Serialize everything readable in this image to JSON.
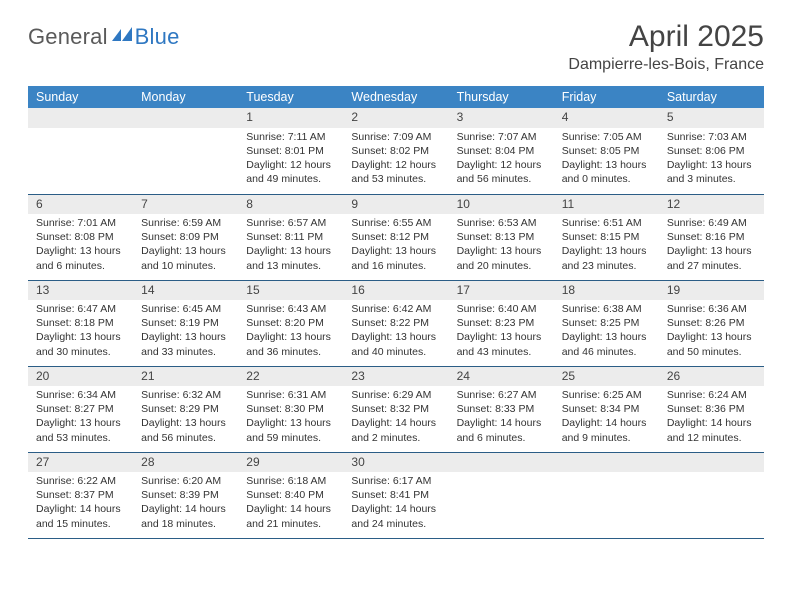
{
  "brand": {
    "part1": "General",
    "part2": "Blue"
  },
  "title": "April 2025",
  "location": "Dampierre-les-Bois, France",
  "colors": {
    "header_bg": "#3b84c4",
    "row_sep": "#2b5d86",
    "band_bg": "#ececec",
    "text": "#333333",
    "brand_gray": "#5a5a5a",
    "brand_blue": "#2f78c2"
  },
  "weekdays": [
    "Sunday",
    "Monday",
    "Tuesday",
    "Wednesday",
    "Thursday",
    "Friday",
    "Saturday"
  ],
  "weeks": [
    [
      null,
      null,
      {
        "n": "1",
        "sr": "7:11 AM",
        "ss": "8:01 PM",
        "dl": "12 hours and 49 minutes."
      },
      {
        "n": "2",
        "sr": "7:09 AM",
        "ss": "8:02 PM",
        "dl": "12 hours and 53 minutes."
      },
      {
        "n": "3",
        "sr": "7:07 AM",
        "ss": "8:04 PM",
        "dl": "12 hours and 56 minutes."
      },
      {
        "n": "4",
        "sr": "7:05 AM",
        "ss": "8:05 PM",
        "dl": "13 hours and 0 minutes."
      },
      {
        "n": "5",
        "sr": "7:03 AM",
        "ss": "8:06 PM",
        "dl": "13 hours and 3 minutes."
      }
    ],
    [
      {
        "n": "6",
        "sr": "7:01 AM",
        "ss": "8:08 PM",
        "dl": "13 hours and 6 minutes."
      },
      {
        "n": "7",
        "sr": "6:59 AM",
        "ss": "8:09 PM",
        "dl": "13 hours and 10 minutes."
      },
      {
        "n": "8",
        "sr": "6:57 AM",
        "ss": "8:11 PM",
        "dl": "13 hours and 13 minutes."
      },
      {
        "n": "9",
        "sr": "6:55 AM",
        "ss": "8:12 PM",
        "dl": "13 hours and 16 minutes."
      },
      {
        "n": "10",
        "sr": "6:53 AM",
        "ss": "8:13 PM",
        "dl": "13 hours and 20 minutes."
      },
      {
        "n": "11",
        "sr": "6:51 AM",
        "ss": "8:15 PM",
        "dl": "13 hours and 23 minutes."
      },
      {
        "n": "12",
        "sr": "6:49 AM",
        "ss": "8:16 PM",
        "dl": "13 hours and 27 minutes."
      }
    ],
    [
      {
        "n": "13",
        "sr": "6:47 AM",
        "ss": "8:18 PM",
        "dl": "13 hours and 30 minutes."
      },
      {
        "n": "14",
        "sr": "6:45 AM",
        "ss": "8:19 PM",
        "dl": "13 hours and 33 minutes."
      },
      {
        "n": "15",
        "sr": "6:43 AM",
        "ss": "8:20 PM",
        "dl": "13 hours and 36 minutes."
      },
      {
        "n": "16",
        "sr": "6:42 AM",
        "ss": "8:22 PM",
        "dl": "13 hours and 40 minutes."
      },
      {
        "n": "17",
        "sr": "6:40 AM",
        "ss": "8:23 PM",
        "dl": "13 hours and 43 minutes."
      },
      {
        "n": "18",
        "sr": "6:38 AM",
        "ss": "8:25 PM",
        "dl": "13 hours and 46 minutes."
      },
      {
        "n": "19",
        "sr": "6:36 AM",
        "ss": "8:26 PM",
        "dl": "13 hours and 50 minutes."
      }
    ],
    [
      {
        "n": "20",
        "sr": "6:34 AM",
        "ss": "8:27 PM",
        "dl": "13 hours and 53 minutes."
      },
      {
        "n": "21",
        "sr": "6:32 AM",
        "ss": "8:29 PM",
        "dl": "13 hours and 56 minutes."
      },
      {
        "n": "22",
        "sr": "6:31 AM",
        "ss": "8:30 PM",
        "dl": "13 hours and 59 minutes."
      },
      {
        "n": "23",
        "sr": "6:29 AM",
        "ss": "8:32 PM",
        "dl": "14 hours and 2 minutes."
      },
      {
        "n": "24",
        "sr": "6:27 AM",
        "ss": "8:33 PM",
        "dl": "14 hours and 6 minutes."
      },
      {
        "n": "25",
        "sr": "6:25 AM",
        "ss": "8:34 PM",
        "dl": "14 hours and 9 minutes."
      },
      {
        "n": "26",
        "sr": "6:24 AM",
        "ss": "8:36 PM",
        "dl": "14 hours and 12 minutes."
      }
    ],
    [
      {
        "n": "27",
        "sr": "6:22 AM",
        "ss": "8:37 PM",
        "dl": "14 hours and 15 minutes."
      },
      {
        "n": "28",
        "sr": "6:20 AM",
        "ss": "8:39 PM",
        "dl": "14 hours and 18 minutes."
      },
      {
        "n": "29",
        "sr": "6:18 AM",
        "ss": "8:40 PM",
        "dl": "14 hours and 21 minutes."
      },
      {
        "n": "30",
        "sr": "6:17 AM",
        "ss": "8:41 PM",
        "dl": "14 hours and 24 minutes."
      },
      null,
      null,
      null
    ]
  ],
  "labels": {
    "sunrise": "Sunrise: ",
    "sunset": "Sunset: ",
    "daylight": "Daylight: "
  }
}
